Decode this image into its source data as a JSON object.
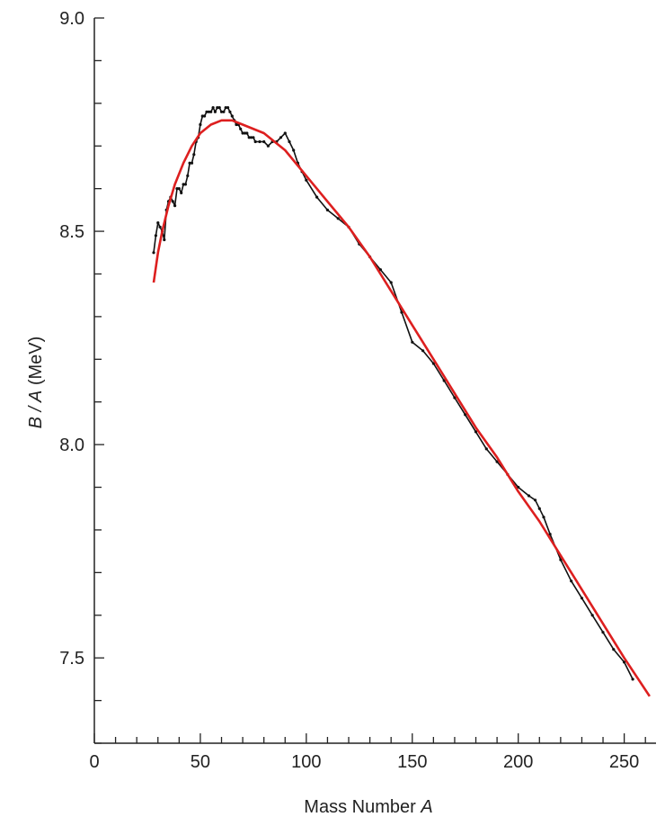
{
  "chart_data": {
    "type": "line",
    "xlabel": {
      "text": "Mass Number",
      "symbol": "A"
    },
    "ylabel": {
      "symbol": "B / A",
      "unit": "(MeV)"
    },
    "xlim": [
      0,
      265
    ],
    "ylim": [
      7.3,
      9.0
    ],
    "x_ticks": [
      0,
      50,
      100,
      150,
      200,
      250
    ],
    "x_tick_labels": [
      "0",
      "50",
      "100",
      "150",
      "200",
      "250"
    ],
    "y_ticks": [
      7.5,
      8.0,
      8.5,
      9.0
    ],
    "y_tick_labels": [
      "7.5",
      "8.0",
      "8.5",
      "9.0"
    ],
    "y_minor_step": 0.1,
    "x_minor_step": 10,
    "grid": false,
    "series": [
      {
        "color": "#111111",
        "style": "measured",
        "x": [
          28,
          29,
          30,
          31,
          32,
          33,
          34,
          35,
          36,
          37,
          38,
          39,
          40,
          41,
          42,
          43,
          44,
          45,
          46,
          47,
          48,
          49,
          50,
          51,
          52,
          53,
          54,
          55,
          56,
          57,
          58,
          59,
          60,
          61,
          62,
          63,
          64,
          65,
          66,
          67,
          68,
          69,
          70,
          71,
          72,
          73,
          74,
          75,
          76,
          78,
          80,
          82,
          84,
          86,
          88,
          90,
          92,
          94,
          96,
          98,
          100,
          105,
          110,
          115,
          120,
          125,
          130,
          135,
          140,
          145,
          150,
          155,
          160,
          165,
          170,
          175,
          180,
          185,
          190,
          195,
          200,
          205,
          208,
          210,
          212,
          215,
          220,
          225,
          230,
          235,
          240,
          245,
          250,
          254
        ],
        "y": [
          8.45,
          8.49,
          8.52,
          8.51,
          8.5,
          8.48,
          8.55,
          8.57,
          8.58,
          8.57,
          8.56,
          8.6,
          8.6,
          8.59,
          8.61,
          8.61,
          8.63,
          8.66,
          8.66,
          8.68,
          8.71,
          8.72,
          8.75,
          8.77,
          8.77,
          8.78,
          8.78,
          8.78,
          8.79,
          8.78,
          8.79,
          8.79,
          8.78,
          8.78,
          8.79,
          8.79,
          8.78,
          8.77,
          8.76,
          8.75,
          8.75,
          8.74,
          8.73,
          8.73,
          8.73,
          8.72,
          8.72,
          8.72,
          8.71,
          8.71,
          8.71,
          8.7,
          8.71,
          8.71,
          8.72,
          8.73,
          8.71,
          8.69,
          8.66,
          8.64,
          8.62,
          8.58,
          8.55,
          8.53,
          8.51,
          8.47,
          8.44,
          8.41,
          8.38,
          8.31,
          8.24,
          8.22,
          8.19,
          8.15,
          8.11,
          8.07,
          8.03,
          7.99,
          7.96,
          7.93,
          7.9,
          7.88,
          7.87,
          7.85,
          7.83,
          7.79,
          7.73,
          7.68,
          7.64,
          7.6,
          7.56,
          7.52,
          7.49,
          7.45
        ]
      },
      {
        "color": "#dd1f1f",
        "style": "fit",
        "x": [
          28,
          30,
          32,
          35,
          38,
          42,
          46,
          50,
          55,
          60,
          65,
          70,
          80,
          90,
          100,
          110,
          120,
          130,
          140,
          150,
          160,
          170,
          180,
          190,
          200,
          210,
          220,
          230,
          240,
          250,
          262
        ],
        "y": [
          8.38,
          8.45,
          8.5,
          8.56,
          8.61,
          8.66,
          8.7,
          8.73,
          8.75,
          8.76,
          8.76,
          8.75,
          8.73,
          8.69,
          8.63,
          8.57,
          8.51,
          8.44,
          8.36,
          8.28,
          8.2,
          8.12,
          8.04,
          7.97,
          7.89,
          7.82,
          7.74,
          7.66,
          7.58,
          7.5,
          7.41
        ]
      }
    ]
  }
}
